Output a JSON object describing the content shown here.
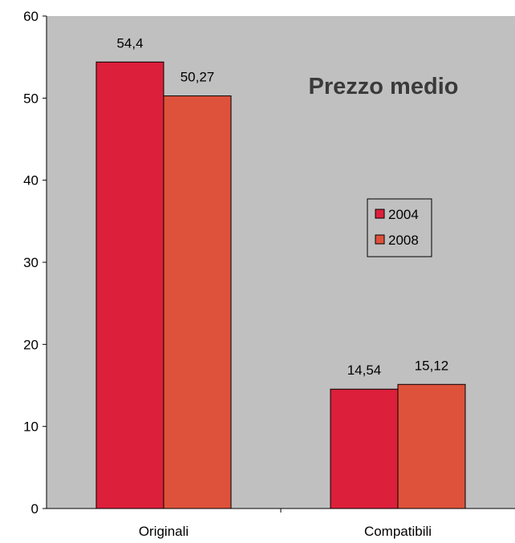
{
  "chart_data": {
    "type": "bar",
    "title": "Prezzo medio",
    "categories": [
      "Originali",
      "Compatibili"
    ],
    "series": [
      {
        "name": "2004",
        "values": [
          54.4,
          14.54
        ],
        "labels": [
          "54,4",
          "14,54"
        ],
        "color": "#dc1f3a"
      },
      {
        "name": "2008",
        "values": [
          50.27,
          15.12
        ],
        "labels": [
          "50,27",
          "15,12"
        ],
        "color": "#de523b"
      }
    ],
    "ylim": [
      0,
      60
    ],
    "yticks": [
      0,
      10,
      20,
      30,
      40,
      50,
      60
    ],
    "ytick_labels": [
      "0",
      "10",
      "20",
      "30",
      "40",
      "50",
      "60"
    ],
    "legend_position": "right",
    "grid": false,
    "plot_background": "#c0c0c0"
  }
}
